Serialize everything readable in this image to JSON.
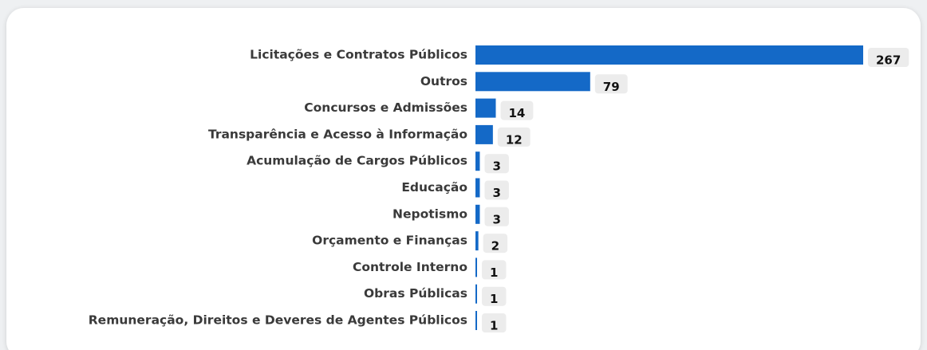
{
  "chart_data": {
    "type": "hbar",
    "categories": [
      "Licitações e Contratos Públicos",
      "Outros",
      "Concursos e Admissões",
      "Transparência e Acesso à Informação",
      "Acumulação de Cargos Públicos",
      "Educação",
      "Nepotismo",
      "Orçamento e Finanças",
      "Controle Interno",
      "Obras Públicas",
      "Remuneração, Direitos e Deveres de Agentes Públicos"
    ],
    "values": [
      267,
      79,
      14,
      12,
      3,
      3,
      3,
      2,
      1,
      1,
      1
    ],
    "color": "#1469c7"
  }
}
